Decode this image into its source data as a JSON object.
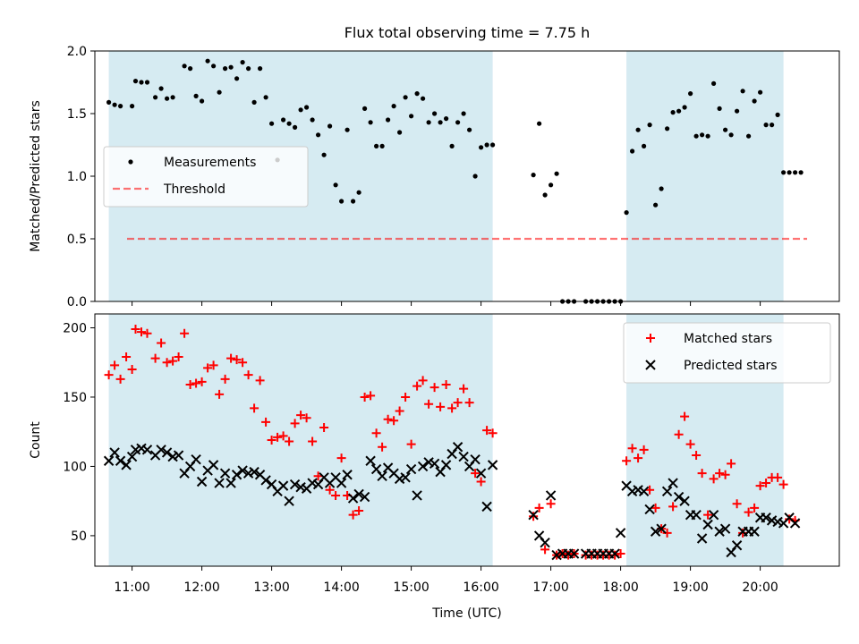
{
  "title": "Flux total observing time = 7.75 h",
  "colors": {
    "observing_band": "#add8e6",
    "threshold": "#ff0000",
    "matched": "#ff0000",
    "predicted": "#000000",
    "measurement": "#000000"
  },
  "chart_data": [
    {
      "type": "scatter",
      "ylabel": "Matched/Predicted stars",
      "xlim": [
        "10:28",
        "21:08"
      ],
      "ylim": [
        0,
        2.0
      ],
      "yticks": [
        0.0,
        0.5,
        1.0,
        1.5,
        2.0
      ],
      "ytick_labels": [
        "0.0",
        "0.5",
        "1.0",
        "1.5",
        "2.0"
      ],
      "legend": {
        "placement": "center-left",
        "entries": [
          "Measurements",
          "Threshold"
        ]
      },
      "shaded_intervals": [
        [
          "10:40",
          "16:10"
        ],
        [
          "18:05",
          "20:20"
        ]
      ],
      "threshold": 0.5,
      "series": [
        {
          "name": "Measurements",
          "marker": "dot",
          "x": [
            "10:40",
            "10:45",
            "10:50",
            "11:00",
            "11:03",
            "11:08",
            "11:13",
            "11:20",
            "11:25",
            "11:30",
            "11:35",
            "11:45",
            "11:50",
            "11:55",
            "12:00",
            "12:05",
            "12:10",
            "12:15",
            "12:20",
            "12:25",
            "12:30",
            "12:35",
            "12:40",
            "12:45",
            "12:50",
            "12:55",
            "13:00",
            "13:05",
            "13:10",
            "13:15",
            "13:20",
            "13:25",
            "13:30",
            "13:35",
            "13:40",
            "13:45",
            "13:50",
            "13:55",
            "14:00",
            "14:05",
            "14:10",
            "14:15",
            "14:20",
            "14:25",
            "14:30",
            "14:35",
            "14:40",
            "14:45",
            "14:50",
            "14:55",
            "15:00",
            "15:05",
            "15:10",
            "15:15",
            "15:20",
            "15:25",
            "15:30",
            "15:35",
            "15:40",
            "15:45",
            "15:50",
            "15:55",
            "16:00",
            "16:05",
            "16:10",
            "16:45",
            "16:50",
            "16:55",
            "17:00",
            "17:05",
            "17:10",
            "17:15",
            "17:20",
            "17:30",
            "17:35",
            "17:40",
            "17:45",
            "17:50",
            "17:55",
            "18:00",
            "18:05",
            "18:10",
            "18:15",
            "18:20",
            "18:25",
            "18:30",
            "18:35",
            "18:40",
            "18:45",
            "18:50",
            "18:55",
            "19:00",
            "19:05",
            "19:10",
            "19:15",
            "19:20",
            "19:25",
            "19:30",
            "19:35",
            "19:40",
            "19:45",
            "19:50",
            "19:55",
            "20:00",
            "20:05",
            "20:10",
            "20:15",
            "20:20",
            "20:25",
            "20:30",
            "20:35"
          ],
          "y": [
            1.59,
            1.57,
            1.56,
            1.56,
            1.76,
            1.75,
            1.75,
            1.63,
            1.7,
            1.62,
            1.63,
            1.88,
            1.86,
            1.64,
            1.6,
            1.92,
            1.88,
            1.67,
            1.86,
            1.87,
            1.78,
            1.91,
            1.86,
            1.59,
            1.86,
            1.63,
            1.42,
            1.13,
            1.45,
            1.42,
            1.39,
            1.53,
            1.55,
            1.45,
            1.33,
            1.17,
            1.4,
            0.93,
            0.8,
            1.37,
            0.8,
            0.87,
            1.54,
            1.43,
            1.24,
            1.24,
            1.45,
            1.56,
            1.35,
            1.63,
            1.48,
            1.66,
            1.62,
            1.43,
            1.5,
            1.43,
            1.46,
            1.24,
            1.43,
            1.5,
            1.37,
            1.0,
            1.23,
            1.25,
            1.25,
            1.01,
            1.42,
            0.85,
            0.93,
            1.02,
            0.0,
            0.0,
            0.0,
            0.0,
            0.0,
            0.0,
            0.0,
            0.0,
            0.0,
            0.0,
            0.71,
            1.2,
            1.37,
            1.24,
            1.41,
            0.77,
            0.9,
            1.38,
            1.51,
            1.52,
            1.55,
            1.66,
            1.32,
            1.33,
            1.32,
            1.74,
            1.54,
            1.37,
            1.33,
            1.52,
            1.68,
            1.32,
            1.6,
            1.67,
            1.41,
            1.41,
            1.49,
            1.03,
            1.03,
            1.03,
            1.03
          ]
        }
      ]
    },
    {
      "type": "scatter",
      "xlabel": "Time (UTC)",
      "ylabel": "Count",
      "xlim": [
        "10:28",
        "21:08"
      ],
      "xticks": [
        "11:00",
        "12:00",
        "13:00",
        "14:00",
        "15:00",
        "16:00",
        "17:00",
        "18:00",
        "19:00",
        "20:00"
      ],
      "ylim": [
        28,
        210
      ],
      "yticks": [
        50,
        100,
        150,
        200
      ],
      "ytick_labels": [
        "50",
        "100",
        "150",
        "200"
      ],
      "legend": {
        "placement": "top-right",
        "entries": [
          "Matched stars",
          "Predicted stars"
        ]
      },
      "shaded_intervals": [
        [
          "10:40",
          "16:10"
        ],
        [
          "18:05",
          "20:20"
        ]
      ],
      "series": [
        {
          "name": "Matched stars",
          "marker": "plus",
          "x": [
            "10:40",
            "10:45",
            "10:50",
            "10:55",
            "11:00",
            "11:03",
            "11:08",
            "11:13",
            "11:20",
            "11:25",
            "11:30",
            "11:35",
            "11:40",
            "11:45",
            "11:50",
            "11:55",
            "12:00",
            "12:05",
            "12:10",
            "12:15",
            "12:20",
            "12:25",
            "12:30",
            "12:35",
            "12:40",
            "12:45",
            "12:50",
            "12:55",
            "13:00",
            "13:05",
            "13:10",
            "13:15",
            "13:20",
            "13:25",
            "13:30",
            "13:35",
            "13:40",
            "13:45",
            "13:50",
            "13:55",
            "14:00",
            "14:05",
            "14:10",
            "14:15",
            "14:20",
            "14:25",
            "14:30",
            "14:35",
            "14:40",
            "14:45",
            "14:50",
            "14:55",
            "15:00",
            "15:05",
            "15:10",
            "15:15",
            "15:20",
            "15:25",
            "15:30",
            "15:35",
            "15:40",
            "15:45",
            "15:50",
            "15:55",
            "16:00",
            "16:05",
            "16:10",
            "16:45",
            "16:50",
            "16:55",
            "17:00",
            "17:05",
            "17:10",
            "17:15",
            "17:20",
            "17:30",
            "17:35",
            "17:40",
            "17:45",
            "17:50",
            "17:55",
            "18:00",
            "18:05",
            "18:10",
            "18:15",
            "18:20",
            "18:25",
            "18:30",
            "18:35",
            "18:40",
            "18:45",
            "18:50",
            "18:55",
            "19:00",
            "19:05",
            "19:10",
            "19:15",
            "19:20",
            "19:25",
            "19:30",
            "19:35",
            "19:40",
            "19:45",
            "19:50",
            "19:55",
            "20:00",
            "20:05",
            "20:10",
            "20:15",
            "20:20",
            "20:25",
            "20:30"
          ],
          "y": [
            166,
            173,
            163,
            179,
            170,
            199,
            197,
            196,
            178,
            189,
            175,
            176,
            179,
            196,
            159,
            160,
            161,
            171,
            173,
            152,
            163,
            178,
            177,
            175,
            166,
            142,
            162,
            132,
            119,
            121,
            122,
            118,
            131,
            137,
            135,
            118,
            93,
            128,
            83,
            79,
            106,
            79,
            65,
            68,
            150,
            151,
            124,
            114,
            134,
            133,
            140,
            150,
            116,
            158,
            162,
            145,
            157,
            143,
            159,
            142,
            146,
            156,
            146,
            95,
            89,
            126,
            124,
            64,
            70,
            40,
            73,
            36,
            37,
            36,
            37,
            36,
            36,
            36,
            36,
            36,
            36,
            37,
            104,
            113,
            106,
            112,
            83,
            70,
            55,
            52,
            71,
            123,
            136,
            116,
            108,
            95,
            65,
            91,
            95,
            94,
            102,
            73,
            52,
            67,
            70,
            86,
            88,
            92,
            92,
            87,
            62,
            61
          ]
        },
        {
          "name": "Predicted stars",
          "marker": "x",
          "x": [
            "10:40",
            "10:45",
            "10:50",
            "10:55",
            "11:00",
            "11:03",
            "11:08",
            "11:13",
            "11:20",
            "11:25",
            "11:30",
            "11:35",
            "11:40",
            "11:45",
            "11:50",
            "11:55",
            "12:00",
            "12:05",
            "12:10",
            "12:15",
            "12:20",
            "12:25",
            "12:30",
            "12:35",
            "12:40",
            "12:45",
            "12:50",
            "12:55",
            "13:00",
            "13:05",
            "13:10",
            "13:15",
            "13:20",
            "13:25",
            "13:30",
            "13:35",
            "13:40",
            "13:45",
            "13:50",
            "13:55",
            "14:00",
            "14:05",
            "14:10",
            "14:15",
            "14:20",
            "14:25",
            "14:30",
            "14:35",
            "14:40",
            "14:45",
            "14:50",
            "14:55",
            "15:00",
            "15:05",
            "15:10",
            "15:15",
            "15:20",
            "15:25",
            "15:30",
            "15:35",
            "15:40",
            "15:45",
            "15:50",
            "15:55",
            "16:00",
            "16:05",
            "16:10",
            "16:45",
            "16:50",
            "16:55",
            "17:00",
            "17:05",
            "17:10",
            "17:15",
            "17:20",
            "17:30",
            "17:35",
            "17:40",
            "17:45",
            "17:50",
            "17:55",
            "18:00",
            "18:05",
            "18:10",
            "18:15",
            "18:20",
            "18:25",
            "18:30",
            "18:35",
            "18:40",
            "18:45",
            "18:50",
            "18:55",
            "19:00",
            "19:05",
            "19:10",
            "19:15",
            "19:20",
            "19:25",
            "19:30",
            "19:35",
            "19:40",
            "19:45",
            "19:50",
            "19:55",
            "20:00",
            "20:05",
            "20:10",
            "20:15",
            "20:20",
            "20:25",
            "20:30"
          ],
          "y": [
            104,
            110,
            104,
            101,
            107,
            112,
            113,
            112,
            108,
            112,
            110,
            107,
            108,
            95,
            100,
            105,
            89,
            97,
            101,
            88,
            95,
            88,
            94,
            97,
            95,
            96,
            94,
            90,
            87,
            82,
            86,
            75,
            87,
            85,
            84,
            88,
            87,
            92,
            88,
            92,
            88,
            94,
            77,
            80,
            78,
            104,
            98,
            93,
            99,
            95,
            91,
            92,
            98,
            79,
            100,
            103,
            102,
            96,
            101,
            109,
            114,
            107,
            100,
            105,
            95,
            71,
            101,
            65,
            50,
            45,
            79,
            36,
            37,
            37,
            37,
            37,
            37,
            37,
            37,
            37,
            37,
            52,
            86,
            82,
            83,
            82,
            69,
            53,
            55,
            82,
            88,
            78,
            75,
            65,
            65,
            48,
            58,
            65,
            53,
            55,
            38,
            43,
            53,
            53,
            53,
            63,
            63,
            61,
            60,
            59,
            63,
            59
          ]
        }
      ]
    }
  ]
}
